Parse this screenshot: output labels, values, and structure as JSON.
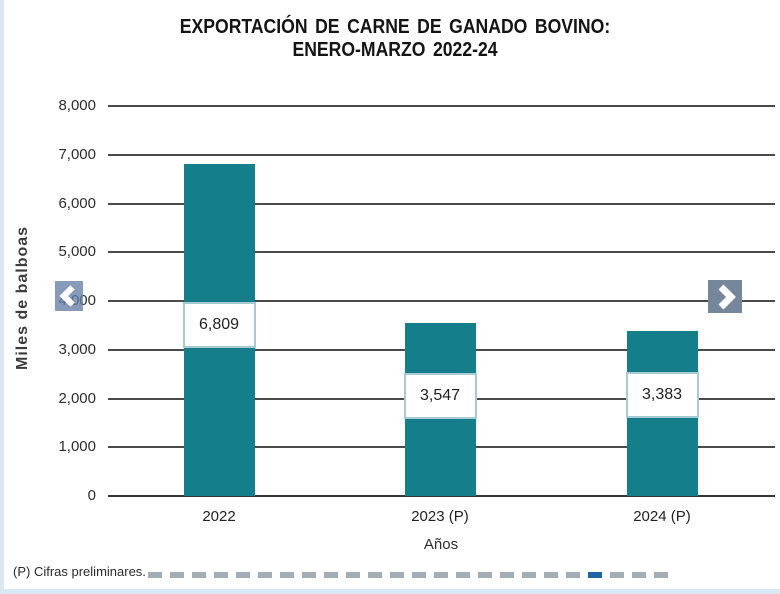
{
  "chart_data": {
    "type": "bar",
    "title_line1": "EXPORTACIÓN DE CARNE DE GANADO BOVINO:",
    "title_line2": "ENERO-MARZO 2022-24",
    "categories": [
      "2022",
      "2023 (P)",
      "2024 (P)"
    ],
    "values": [
      6809,
      3547,
      3383
    ],
    "value_labels": [
      "6,809",
      "3,547",
      "3,383"
    ],
    "xlabel": "Años",
    "ylabel": "Miles de balboas",
    "ylim": [
      0,
      8000
    ],
    "ytick_step": 1000,
    "ytick_labels": [
      "8,000",
      "7,000",
      "6,000",
      "5,000",
      "4,000",
      "3,000",
      "2,000",
      "1,000",
      "0"
    ],
    "grid": true,
    "legend": "none",
    "bar_color": "#147e8a"
  },
  "footnote": {
    "text": "(P) Cifras preliminares."
  },
  "nav": {
    "prev_icon": "chevron-left-icon",
    "next_icon": "chevron-right-icon"
  },
  "colors": {
    "bar": "#147e8a",
    "gridline": "#4a4a4a",
    "label_box_border": "#a7cbd1",
    "nav_prev_bg": "#6681a8",
    "nav_next_bg": "#76879c",
    "dash": "#a3adb6",
    "dash_accent": "#1f63a4",
    "page_edge": "#dbe7f3"
  },
  "dashed_rule": {
    "dash_count": 24,
    "accent_index": 20
  }
}
